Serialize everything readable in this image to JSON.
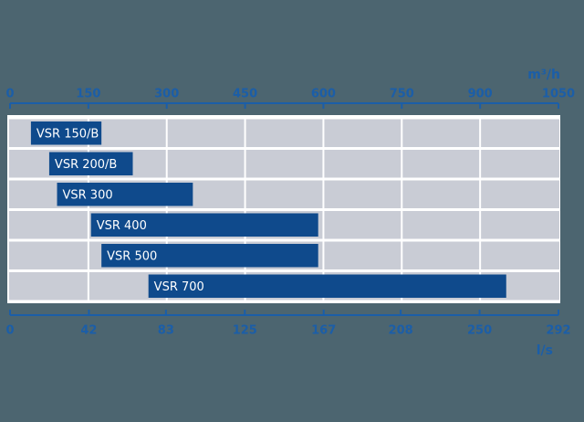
{
  "chart_data": {
    "type": "range-bar",
    "categories": [
      "VSR 150/B",
      "VSR 200/B",
      "VSR 300",
      "VSR 400",
      "VSR 500",
      "VSR 700"
    ],
    "start": [
      40,
      75,
      90,
      155,
      175,
      265
    ],
    "end": [
      175,
      235,
      350,
      590,
      590,
      950
    ],
    "color": "#0f4a8c",
    "xlabel": "m³/h",
    "xlim": [
      0,
      1050
    ],
    "xticks": [
      0,
      150,
      300,
      450,
      600,
      750,
      900,
      1050
    ],
    "x2label": "l/s",
    "x2lim": [
      0,
      292
    ],
    "x2ticks": [
      0,
      42,
      83,
      125,
      167,
      208,
      250,
      292
    ],
    "grid": true
  }
}
